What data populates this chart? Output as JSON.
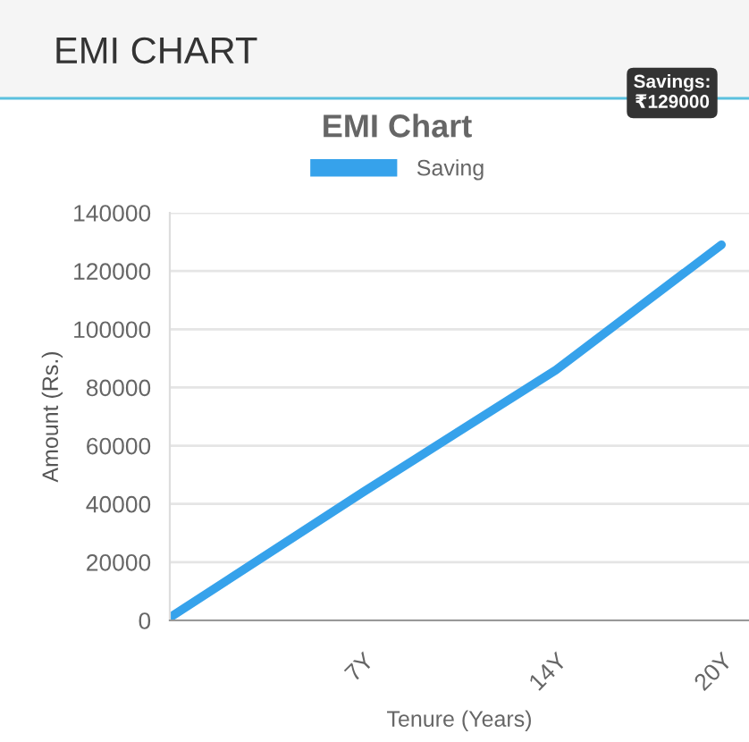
{
  "chart_data": {
    "type": "line",
    "title": "EMI CHART",
    "subtitle": "EMI Chart",
    "xlabel": "Tenure (Years)",
    "ylabel": "Amount (Rs.)",
    "x": [
      0,
      7,
      14,
      20
    ],
    "series": [
      {
        "name": "Saving",
        "color": "#36a2eb",
        "values": [
          1000,
          44000,
          86000,
          129000
        ]
      }
    ],
    "xlim": [
      0,
      21
    ],
    "xticks": [
      {
        "value": 7,
        "label": "7Y"
      },
      {
        "value": 14,
        "label": "14Y"
      },
      {
        "value": 20,
        "label": "20Y"
      }
    ],
    "ylim": [
      0,
      140000
    ],
    "yticks": [
      0,
      20000,
      40000,
      60000,
      80000,
      100000,
      120000,
      140000
    ],
    "grid": "y",
    "legend": "top",
    "marker": "none",
    "line_style": "solid",
    "annotations": [
      "Savings:\n₹129000"
    ]
  }
}
